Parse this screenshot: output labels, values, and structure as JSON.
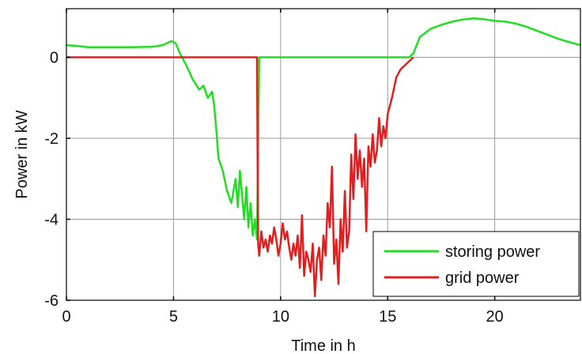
{
  "chart_data": {
    "type": "line",
    "xlabel": "Time in h",
    "ylabel": "Power in kW",
    "xlim": [
      0,
      24
    ],
    "ylim": [
      -6,
      1.2
    ],
    "xticks": [
      0,
      5,
      10,
      15,
      20
    ],
    "yticks": [
      -6,
      -4,
      -2,
      0
    ],
    "xtick_labels": [
      "0",
      "5",
      "10",
      "15",
      "20"
    ],
    "ytick_labels": [
      "-6",
      "-4",
      "-2",
      "0"
    ],
    "grid": true,
    "legend_position": "bottom-right",
    "series": [
      {
        "name": "storing power",
        "color": "#22dd22",
        "x": [
          0,
          0.5,
          1,
          2,
          3,
          4,
          4.5,
          4.9,
          5.1,
          5.3,
          5.6,
          5.9,
          6.2,
          6.4,
          6.6,
          6.8,
          6.9,
          7.0,
          7.1,
          7.3,
          7.5,
          7.7,
          7.9,
          8.0,
          8.1,
          8.2,
          8.3,
          8.4,
          8.5,
          8.6,
          8.7,
          8.8,
          8.9,
          9.0,
          16.0,
          16.2,
          16.5,
          17,
          17.5,
          18,
          18.5,
          19,
          19.5,
          20,
          20.5,
          21,
          21.5,
          22,
          22.5,
          23,
          23.5,
          24
        ],
        "y": [
          0.3,
          0.28,
          0.25,
          0.25,
          0.25,
          0.26,
          0.3,
          0.4,
          0.35,
          0.1,
          -0.2,
          -0.55,
          -0.8,
          -0.7,
          -1.0,
          -0.85,
          -1.2,
          -1.8,
          -2.5,
          -2.8,
          -3.3,
          -3.6,
          -3.0,
          -3.7,
          -2.8,
          -3.4,
          -4.0,
          -3.2,
          -4.2,
          -3.6,
          -4.4,
          -4.0,
          -4.5,
          0.0,
          0.0,
          0.1,
          0.5,
          0.7,
          0.8,
          0.88,
          0.93,
          0.96,
          0.94,
          0.9,
          0.88,
          0.83,
          0.75,
          0.65,
          0.55,
          0.45,
          0.37,
          0.3
        ]
      },
      {
        "name": "grid power",
        "color": "#e02020",
        "x": [
          0,
          8.9,
          8.95,
          9.0,
          9.1,
          9.2,
          9.3,
          9.4,
          9.5,
          9.6,
          9.7,
          9.8,
          9.9,
          10.0,
          10.1,
          10.2,
          10.3,
          10.4,
          10.5,
          10.6,
          10.7,
          10.8,
          10.9,
          11.0,
          11.1,
          11.2,
          11.3,
          11.4,
          11.5,
          11.6,
          11.7,
          11.8,
          11.9,
          12.0,
          12.1,
          12.2,
          12.3,
          12.4,
          12.5,
          12.6,
          12.7,
          12.8,
          12.9,
          13.0,
          13.1,
          13.2,
          13.3,
          13.4,
          13.5,
          13.6,
          13.7,
          13.8,
          13.9,
          14.0,
          14.1,
          14.2,
          14.3,
          14.4,
          14.5,
          14.6,
          14.7,
          14.8,
          14.9,
          15.0,
          15.2,
          15.4,
          15.6,
          15.8,
          16.0,
          16.2
        ],
        "y": [
          0,
          0,
          -4.6,
          -4.9,
          -4.3,
          -4.7,
          -4.5,
          -4.8,
          -4.4,
          -4.6,
          -4.2,
          -4.5,
          -4.9,
          -4.6,
          -4.1,
          -4.5,
          -4.3,
          -4.7,
          -5.0,
          -4.6,
          -4.9,
          -4.4,
          -5.2,
          -3.9,
          -5.4,
          -4.8,
          -5.0,
          -5.3,
          -4.6,
          -5.9,
          -5.0,
          -4.7,
          -5.5,
          -4.4,
          -4.9,
          -3.6,
          -4.2,
          -2.7,
          -5.1,
          -4.5,
          -5.6,
          -4.0,
          -4.8,
          -3.3,
          -4.7,
          -4.3,
          -2.4,
          -3.5,
          -1.9,
          -3.0,
          -2.3,
          -3.2,
          -2.5,
          -4.3,
          -2.2,
          -2.7,
          -1.9,
          -2.6,
          -2.3,
          -1.5,
          -2.2,
          -1.7,
          -2.0,
          -1.4,
          -1.0,
          -0.5,
          -0.3,
          -0.2,
          -0.1,
          0.0
        ]
      }
    ]
  }
}
